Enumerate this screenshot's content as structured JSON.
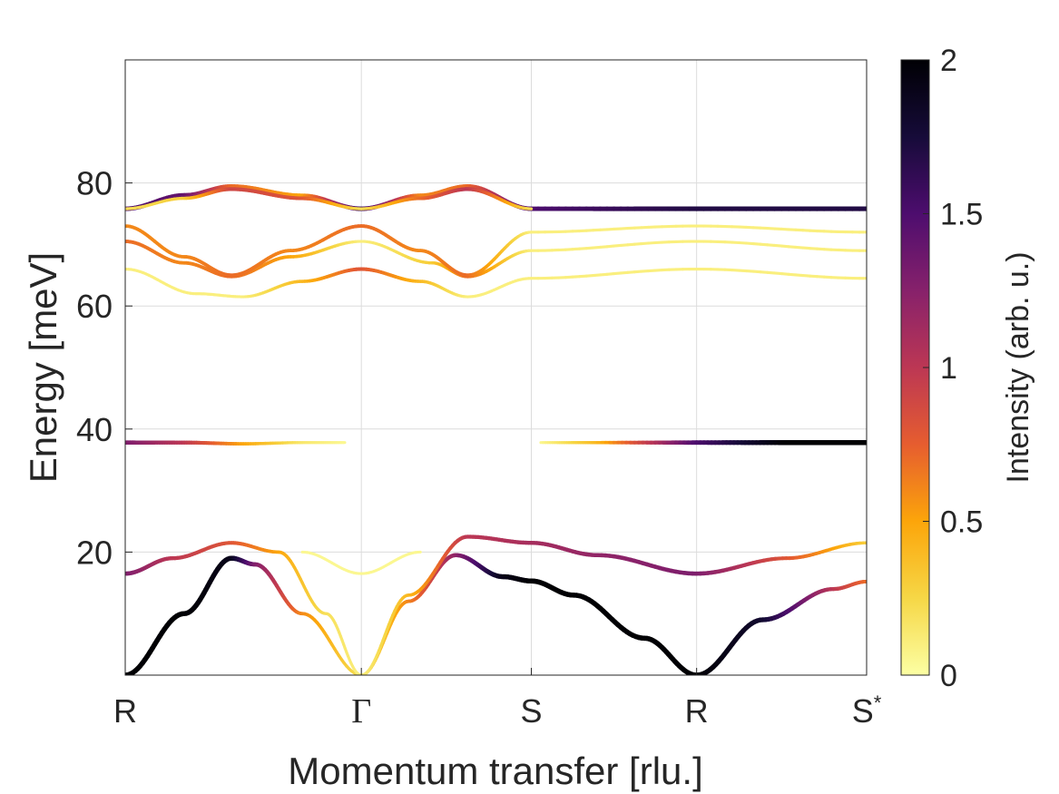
{
  "chart_data": {
    "type": "heatmap",
    "xlabel": "Momentum transfer [rlu.]",
    "ylabel": "Energy [meV]",
    "colorbar_label": "Intensity (arb. u.)",
    "x_ticks": [
      {
        "label": "R",
        "pos": 0
      },
      {
        "label": "Γ",
        "pos": 1
      },
      {
        "label": "S",
        "pos": 1.72
      },
      {
        "label": "R",
        "pos": 2.42
      },
      {
        "label": "S",
        "sup": "*",
        "pos": 3.14
      }
    ],
    "xlim": [
      0,
      3.14
    ],
    "ylim": [
      0,
      100
    ],
    "y_ticks": [
      20,
      40,
      60,
      80
    ],
    "grid": true,
    "colorbar": {
      "clim": [
        0,
        2
      ],
      "ticks": [
        "0",
        "0.5",
        "1",
        "1.5",
        "2"
      ],
      "colormap": [
        "#fcffa4",
        "#f6d746",
        "#fca50a",
        "#e65d2f",
        "#bc3754",
        "#87216b",
        "#4d0d6e",
        "#160b39",
        "#000004"
      ]
    },
    "branches": [
      {
        "name": "acoustic-low",
        "points": [
          [
            0,
            0,
            2
          ],
          [
            0.25,
            10,
            2
          ],
          [
            0.45,
            19,
            1.9
          ],
          [
            0.55,
            18,
            1.3
          ],
          [
            0.75,
            10,
            0.6
          ],
          [
            1.0,
            0,
            0.2
          ]
        ]
      },
      {
        "name": "acoustic-low-2",
        "points": [
          [
            1.0,
            0,
            0.2
          ],
          [
            1.2,
            12,
            0.6
          ],
          [
            1.4,
            19.5,
            1.2
          ],
          [
            1.6,
            16,
            1.9
          ],
          [
            1.72,
            15.3,
            2
          ],
          [
            1.9,
            13,
            2
          ],
          [
            2.2,
            6,
            2
          ],
          [
            2.42,
            0,
            2
          ],
          [
            2.7,
            9,
            1.8
          ],
          [
            3.0,
            14,
            1.0
          ],
          [
            3.14,
            15.2,
            0.7
          ]
        ]
      },
      {
        "name": "acoustic-high",
        "points": [
          [
            0,
            16.5,
            1.3
          ],
          [
            0.2,
            19,
            1.0
          ],
          [
            0.45,
            21.5,
            0.8
          ],
          [
            0.65,
            20,
            0.5
          ],
          [
            0.85,
            10,
            0.2
          ],
          [
            1.0,
            0,
            0.1
          ]
        ]
      },
      {
        "name": "acoustic-high-2",
        "points": [
          [
            1.0,
            0,
            0.1
          ],
          [
            1.2,
            13,
            0.4
          ],
          [
            1.45,
            22.5,
            1.0
          ],
          [
            1.72,
            21.5,
            1.1
          ],
          [
            2.0,
            19.5,
            1.2
          ],
          [
            2.42,
            16.5,
            1.3
          ],
          [
            2.8,
            19,
            0.8
          ],
          [
            3.14,
            21.5,
            0.3
          ]
        ]
      },
      {
        "name": "weak-gamma",
        "points": [
          [
            0.75,
            20,
            0.05
          ],
          [
            1.0,
            16.5,
            0.05
          ],
          [
            1.25,
            20,
            0.05
          ]
        ]
      },
      {
        "name": "flat-38-left",
        "points": [
          [
            0,
            37.8,
            1.3
          ],
          [
            0.25,
            37.8,
            1.0
          ],
          [
            0.5,
            37.6,
            0.5
          ],
          [
            0.75,
            37.8,
            0.15
          ],
          [
            0.93,
            37.8,
            0.05
          ]
        ]
      },
      {
        "name": "flat-38-right",
        "points": [
          [
            1.76,
            37.8,
            0.05
          ],
          [
            2.0,
            37.8,
            0.4
          ],
          [
            2.42,
            37.8,
            1.5
          ],
          [
            2.8,
            37.8,
            2.0
          ],
          [
            3.14,
            37.8,
            2.0
          ]
        ]
      },
      {
        "name": "optical-66",
        "points": [
          [
            0,
            66,
            0.1
          ],
          [
            0.3,
            62,
            0.1
          ],
          [
            0.5,
            61.5,
            0.1
          ],
          [
            0.75,
            64,
            0.4
          ],
          [
            1.0,
            66,
            0.8
          ],
          [
            1.25,
            64,
            0.4
          ],
          [
            1.45,
            61.5,
            0.1
          ],
          [
            1.72,
            64.5,
            0.1
          ],
          [
            2.42,
            66,
            0.1
          ],
          [
            3.14,
            64.5,
            0.1
          ]
        ]
      },
      {
        "name": "optical-70",
        "points": [
          [
            0,
            70.5,
            0.7
          ],
          [
            0.25,
            67,
            0.6
          ],
          [
            0.45,
            64.8,
            0.7
          ],
          [
            0.7,
            68,
            0.5
          ],
          [
            1.0,
            70.5,
            0.1
          ],
          [
            1.3,
            67,
            0.3
          ],
          [
            1.45,
            64.8,
            0.7
          ],
          [
            1.72,
            69,
            0.1
          ],
          [
            2.42,
            70.5,
            0.1
          ],
          [
            3.14,
            69,
            0.1
          ]
        ]
      },
      {
        "name": "optical-73",
        "points": [
          [
            0,
            73,
            0.6
          ],
          [
            0.25,
            68,
            0.6
          ],
          [
            0.45,
            65,
            0.7
          ],
          [
            0.7,
            69,
            0.6
          ],
          [
            1.0,
            73,
            0.7
          ],
          [
            1.25,
            69,
            0.6
          ],
          [
            1.45,
            65,
            0.7
          ],
          [
            1.72,
            72,
            0.1
          ],
          [
            2.42,
            73,
            0.1
          ],
          [
            3.14,
            72,
            0.1
          ]
        ]
      },
      {
        "name": "optical-80-a",
        "points": [
          [
            0,
            75.8,
            1.5
          ],
          [
            0.25,
            78,
            1.4
          ],
          [
            0.45,
            79.5,
            0.7
          ],
          [
            0.75,
            78,
            0.5
          ],
          [
            1.0,
            75.8,
            1.6
          ],
          [
            1.25,
            78,
            0.6
          ],
          [
            1.45,
            79.5,
            0.7
          ],
          [
            1.72,
            75.8,
            1.5
          ],
          [
            2.42,
            75.8,
            1.7
          ],
          [
            3.14,
            75.8,
            1.7
          ]
        ]
      },
      {
        "name": "optical-80-b",
        "points": [
          [
            0,
            75.8,
            0.2
          ],
          [
            0.25,
            77.5,
            0.3
          ],
          [
            0.45,
            79.0,
            0.9
          ],
          [
            0.75,
            77.5,
            0.8
          ],
          [
            1.0,
            75.8,
            0.2
          ],
          [
            1.25,
            77.5,
            0.7
          ],
          [
            1.45,
            79.0,
            1.0
          ],
          [
            1.72,
            75.8,
            0.2
          ]
        ]
      }
    ]
  }
}
